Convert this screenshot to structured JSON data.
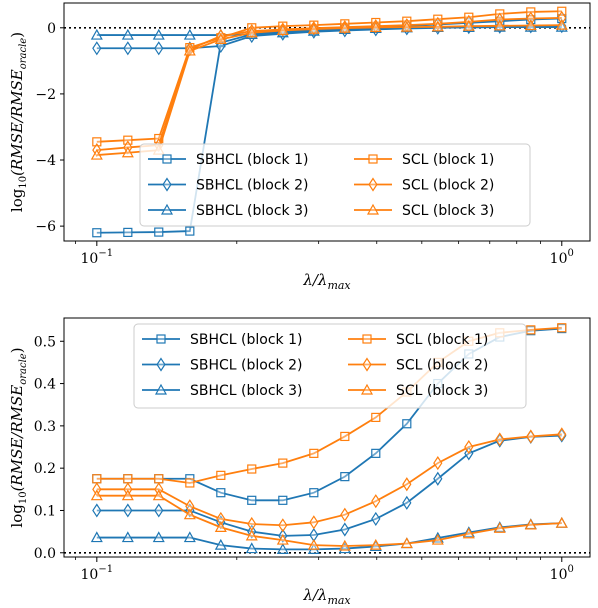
{
  "colors": {
    "sbhcl": "#1f77b4",
    "scl": "#ff7f0e",
    "oracle_ref": "#000000"
  },
  "chart_data": [
    {
      "type": "line",
      "xscale": "log",
      "xlim": [
        0.085,
        1.15
      ],
      "ylim": [
        -6.45,
        0.75
      ],
      "xlabel": "λ/λmax",
      "ylabel": "log10(RMSE/RMSEoracle)",
      "yticks": [
        "−6",
        "−4",
        "−2",
        "0"
      ],
      "ytick_values": [
        -6,
        -4,
        -2,
        0
      ],
      "xticks": [
        "10−1",
        "100"
      ],
      "xtick_values": [
        0.1,
        1.0
      ],
      "hline": 0,
      "legend": {
        "position": "lower-right",
        "ncol": 2
      },
      "x": [
        0.1,
        0.1166,
        0.1359,
        0.1585,
        0.1848,
        0.2154,
        0.2512,
        0.2929,
        0.3415,
        0.3981,
        0.4642,
        0.5412,
        0.631,
        0.7356,
        0.8577,
        1.0
      ],
      "series": [
        {
          "name": "SBHCL (block 1)",
          "group": "sbhcl",
          "marker": "square",
          "values": [
            -6.2,
            -6.19,
            -6.18,
            -6.15,
            -0.45,
            -0.2,
            -0.12,
            -0.08,
            -0.04,
            0.0,
            0.05,
            0.1,
            0.15,
            0.2,
            0.25,
            0.28
          ]
        },
        {
          "name": "SBHCL (block 2)",
          "group": "sbhcl",
          "marker": "diamond",
          "values": [
            -0.62,
            -0.62,
            -0.62,
            -0.62,
            -0.55,
            -0.25,
            -0.18,
            -0.12,
            -0.08,
            -0.05,
            -0.02,
            0.0,
            0.02,
            0.03,
            0.04,
            0.05
          ]
        },
        {
          "name": "SBHCL (block 3)",
          "group": "sbhcl",
          "marker": "triangle",
          "values": [
            -0.22,
            -0.22,
            -0.22,
            -0.22,
            -0.22,
            -0.2,
            -0.15,
            -0.1,
            -0.05,
            -0.02,
            0.0,
            0.01,
            0.01,
            0.02,
            0.02,
            0.02
          ]
        },
        {
          "name": "SCL (block 1)",
          "group": "scl",
          "marker": "square",
          "values": [
            -3.45,
            -3.4,
            -3.35,
            -0.6,
            -0.3,
            0.0,
            0.05,
            0.08,
            0.12,
            0.16,
            0.2,
            0.26,
            0.32,
            0.42,
            0.48,
            0.5
          ]
        },
        {
          "name": "SCL (block 2)",
          "group": "scl",
          "marker": "diamond",
          "values": [
            -3.7,
            -3.62,
            -3.55,
            -0.65,
            -0.25,
            -0.1,
            -0.05,
            -0.01,
            0.02,
            0.05,
            0.08,
            0.12,
            0.18,
            0.25,
            0.28,
            0.3
          ]
        },
        {
          "name": "SCL (block 3)",
          "group": "scl",
          "marker": "triangle",
          "values": [
            -3.85,
            -3.78,
            -3.7,
            -0.7,
            -0.35,
            -0.15,
            -0.08,
            -0.04,
            -0.01,
            0.01,
            0.02,
            0.03,
            0.05,
            0.06,
            0.07,
            0.08
          ]
        }
      ]
    },
    {
      "type": "line",
      "xscale": "log",
      "xlim": [
        0.085,
        1.15
      ],
      "ylim": [
        -0.01,
        0.555
      ],
      "xlabel": "λ/λmax",
      "ylabel": "log10(RMSE/RMSEoracle)",
      "yticks": [
        "0.0",
        "0.1",
        "0.2",
        "0.3",
        "0.4",
        "0.5"
      ],
      "ytick_values": [
        0,
        0.1,
        0.2,
        0.3,
        0.4,
        0.5
      ],
      "xticks": [
        "10−1",
        "100"
      ],
      "xtick_values": [
        0.1,
        1.0
      ],
      "hline": 0,
      "legend": {
        "position": "top-center",
        "ncol": 2
      },
      "x": [
        0.1,
        0.1166,
        0.1359,
        0.1585,
        0.1848,
        0.2154,
        0.2512,
        0.2929,
        0.3415,
        0.3981,
        0.4642,
        0.5412,
        0.631,
        0.7356,
        0.8577,
        1.0
      ],
      "series": [
        {
          "name": "SBHCL (block 1)",
          "group": "sbhcl",
          "marker": "square",
          "values": [
            0.175,
            0.175,
            0.175,
            0.175,
            0.142,
            0.124,
            0.124,
            0.142,
            0.18,
            0.235,
            0.305,
            0.4,
            0.47,
            0.51,
            0.525,
            0.53
          ]
        },
        {
          "name": "SBHCL (block 2)",
          "group": "sbhcl",
          "marker": "diamond",
          "values": [
            0.1,
            0.1,
            0.1,
            0.1,
            0.072,
            0.05,
            0.04,
            0.042,
            0.055,
            0.08,
            0.118,
            0.175,
            0.235,
            0.265,
            0.274,
            0.277
          ]
        },
        {
          "name": "SBHCL (block 3)",
          "group": "sbhcl",
          "marker": "triangle",
          "values": [
            0.036,
            0.036,
            0.036,
            0.036,
            0.018,
            0.01,
            0.008,
            0.008,
            0.01,
            0.015,
            0.022,
            0.035,
            0.048,
            0.06,
            0.067,
            0.07
          ]
        },
        {
          "name": "SCL (block 1)",
          "group": "scl",
          "marker": "square",
          "values": [
            0.175,
            0.175,
            0.175,
            0.165,
            0.183,
            0.198,
            0.212,
            0.235,
            0.275,
            0.32,
            0.38,
            0.45,
            0.5,
            0.52,
            0.527,
            0.532
          ]
        },
        {
          "name": "SCL (block 2)",
          "group": "scl",
          "marker": "diamond",
          "values": [
            0.15,
            0.15,
            0.15,
            0.11,
            0.08,
            0.068,
            0.065,
            0.072,
            0.09,
            0.122,
            0.162,
            0.212,
            0.25,
            0.268,
            0.275,
            0.28
          ]
        },
        {
          "name": "SCL (block 3)",
          "group": "scl",
          "marker": "triangle",
          "values": [
            0.135,
            0.135,
            0.135,
            0.09,
            0.06,
            0.04,
            0.03,
            0.018,
            0.016,
            0.018,
            0.022,
            0.03,
            0.045,
            0.058,
            0.066,
            0.07
          ]
        }
      ]
    }
  ]
}
